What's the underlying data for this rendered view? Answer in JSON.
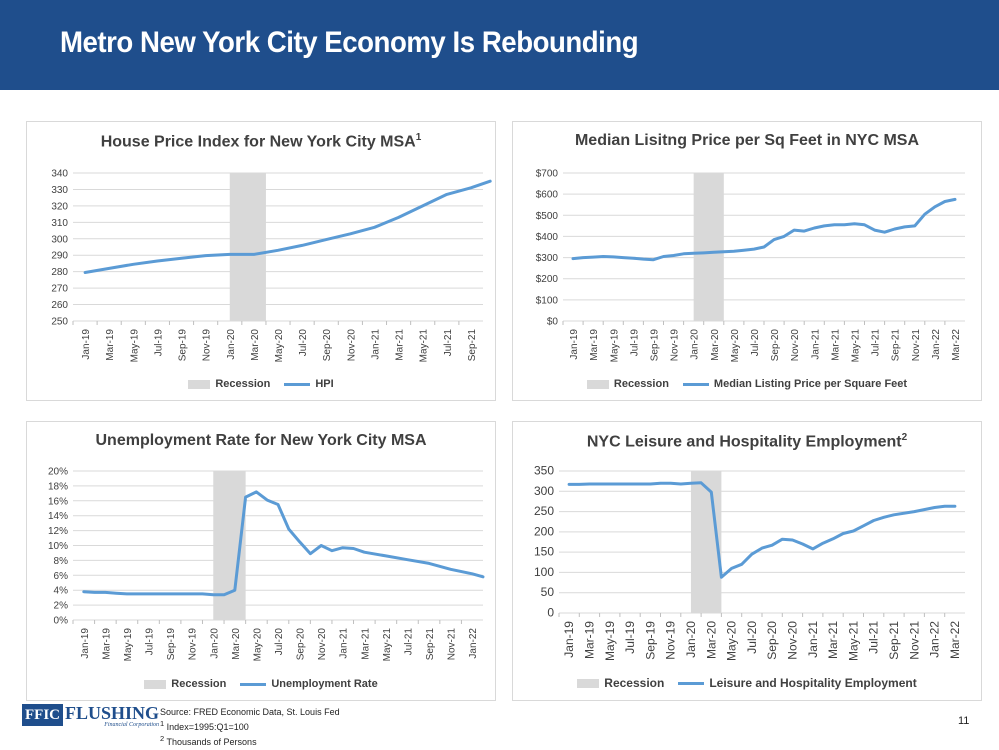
{
  "header": {
    "title": "Metro New York City Economy Is Rebounding"
  },
  "colors": {
    "header_bg": "#1f4e8c",
    "series_line": "#5b9bd5",
    "recession_shade": "#d9d9d9",
    "gridline": "#d9d9d9"
  },
  "chart_data": [
    {
      "id": "hpi",
      "type": "line",
      "title": "House Price Index for New York City MSA",
      "title_sup": "1",
      "ylim": [
        250,
        340
      ],
      "y_ticks": [
        250,
        260,
        270,
        280,
        290,
        300,
        310,
        320,
        330,
        340
      ],
      "y_tick_labels": [
        "250",
        "260",
        "270",
        "280",
        "290",
        "300",
        "310",
        "320",
        "330",
        "340"
      ],
      "x_tick_labels": [
        "Jan-19",
        "Mar-19",
        "May-19",
        "Jul-19",
        "Sep-19",
        "Nov-19",
        "Jan-20",
        "Mar-20",
        "May-20",
        "Jul-20",
        "Sep-20",
        "Nov-20",
        "Jan-21",
        "Mar-21",
        "May-21",
        "Jul-21",
        "Sep-21"
      ],
      "recession": [
        6,
        7.5
      ],
      "series": [
        {
          "name": "HPI",
          "x": [
            0,
            1,
            2,
            3,
            4,
            5,
            6,
            7,
            8,
            9,
            10,
            11,
            12,
            13,
            14,
            15,
            16,
            16.8
          ],
          "values": [
            279.5,
            282,
            284.5,
            286.5,
            288.2,
            289.8,
            290.5,
            290.5,
            293,
            296,
            299.5,
            303,
            307,
            313,
            320,
            327,
            331,
            335
          ]
        }
      ],
      "legend": [
        "Recession",
        "HPI"
      ]
    },
    {
      "id": "listing",
      "type": "line",
      "title": "Median Lisitng Price per Sq Feet in NYC MSA",
      "ylim": [
        0,
        700
      ],
      "y_ticks": [
        0,
        100,
        200,
        300,
        400,
        500,
        600,
        700
      ],
      "y_tick_labels": [
        "$0",
        "$100",
        "$200",
        "$300",
        "$400",
        "$500",
        "$600",
        "$700"
      ],
      "x_tick_labels": [
        "Jan-19",
        "Mar-19",
        "May-19",
        "Jul-19",
        "Sep-19",
        "Nov-19",
        "Jan-20",
        "Mar-20",
        "May-20",
        "Jul-20",
        "Sep-20",
        "Nov-20",
        "Jan-21",
        "Mar-21",
        "May-21",
        "Jul-21",
        "Sep-21",
        "Nov-21",
        "Jan-22",
        "Mar-22"
      ],
      "recession": [
        6,
        7.5
      ],
      "series": [
        {
          "name": "Median Listing Price per Square Feet",
          "x": [
            0,
            0.5,
            1,
            1.5,
            2,
            2.5,
            3,
            3.5,
            4,
            4.5,
            5,
            5.5,
            6,
            6.5,
            7,
            7.5,
            8,
            8.5,
            9,
            9.5,
            10,
            10.5,
            11,
            11.5,
            12,
            12.5,
            13,
            13.5,
            14,
            14.5,
            15,
            15.5,
            16,
            16.5,
            17,
            17.5,
            18,
            18.5,
            19
          ],
          "values": [
            295,
            300,
            302,
            305,
            303,
            300,
            297,
            293,
            290,
            305,
            310,
            318,
            320,
            322,
            325,
            328,
            330,
            335,
            340,
            350,
            385,
            400,
            430,
            425,
            440,
            450,
            455,
            455,
            460,
            455,
            430,
            420,
            435,
            445,
            450,
            505,
            540,
            565,
            575
          ]
        }
      ],
      "legend": [
        "Recession",
        "Median Listing Price per Square Feet"
      ]
    },
    {
      "id": "unemployment",
      "type": "line",
      "title": "Unemployment Rate for New York City MSA",
      "ylim": [
        0,
        20
      ],
      "y_ticks": [
        0,
        2,
        4,
        6,
        8,
        10,
        12,
        14,
        16,
        18,
        20
      ],
      "y_tick_labels": [
        "0%",
        "2%",
        "4%",
        "6%",
        "8%",
        "10%",
        "12%",
        "14%",
        "16%",
        "18%",
        "20%"
      ],
      "x_tick_labels": [
        "Jan-19",
        "Mar-19",
        "May-19",
        "Jul-19",
        "Sep-19",
        "Nov-19",
        "Jan-20",
        "Mar-20",
        "May-20",
        "Jul-20",
        "Sep-20",
        "Nov-20",
        "Jan-21",
        "Mar-21",
        "May-21",
        "Jul-21",
        "Sep-21",
        "Nov-21",
        "Jan-22"
      ],
      "recession": [
        6,
        7.5
      ],
      "series": [
        {
          "name": "Unemployment Rate",
          "x": [
            0,
            0.5,
            1,
            1.5,
            2,
            2.5,
            3,
            3.5,
            4,
            4.5,
            5,
            5.5,
            6,
            6.5,
            7,
            7.5,
            8,
            8.5,
            9,
            9.5,
            10,
            10.5,
            11,
            11.5,
            12,
            12.5,
            13,
            14,
            15,
            16,
            17,
            18,
            18.5
          ],
          "values": [
            3.8,
            3.7,
            3.7,
            3.6,
            3.5,
            3.5,
            3.5,
            3.5,
            3.5,
            3.5,
            3.5,
            3.5,
            3.4,
            3.4,
            4.0,
            16.5,
            17.2,
            16.1,
            15.5,
            12.2,
            10.5,
            8.9,
            10.0,
            9.3,
            9.7,
            9.6,
            9.1,
            8.6,
            8.1,
            7.6,
            6.8,
            6.2,
            5.8
          ]
        }
      ],
      "legend": [
        "Recession",
        "Unemployment Rate"
      ]
    },
    {
      "id": "leisure",
      "type": "line",
      "title": "NYC Leisure and Hospitality Employment",
      "title_sup": "2",
      "ylim": [
        0,
        350
      ],
      "y_ticks": [
        0,
        50,
        100,
        150,
        200,
        250,
        300,
        350
      ],
      "y_tick_labels": [
        "0",
        "50",
        "100",
        "150",
        "200",
        "250",
        "300",
        "350"
      ],
      "x_tick_labels": [
        "Jan-19",
        "Mar-19",
        "May-19",
        "Jul-19",
        "Sep-19",
        "Nov-19",
        "Jan-20",
        "Mar-20",
        "May-20",
        "Jul-20",
        "Sep-20",
        "Nov-20",
        "Jan-21",
        "Mar-21",
        "May-21",
        "Jul-21",
        "Sep-21",
        "Nov-21",
        "Jan-22",
        "Mar-22"
      ],
      "recession": [
        6,
        7.5
      ],
      "series": [
        {
          "name": "Leisure and Hospitality Employment",
          "x": [
            0,
            0.5,
            1,
            1.5,
            2,
            3,
            4,
            4.5,
            5,
            5.5,
            6,
            6.5,
            7,
            7.5,
            8,
            8.5,
            9,
            9.5,
            10,
            10.5,
            11,
            11.5,
            12,
            12.5,
            13,
            13.5,
            14,
            14.5,
            15,
            15.5,
            16,
            17,
            18,
            18.5,
            19
          ],
          "values": [
            317,
            317,
            318,
            318,
            318,
            318,
            318,
            320,
            320,
            318,
            320,
            321,
            298,
            88,
            110,
            120,
            145,
            160,
            167,
            182,
            180,
            170,
            158,
            172,
            183,
            196,
            202,
            215,
            228,
            236,
            242,
            250,
            260,
            263,
            263
          ]
        }
      ],
      "legend": [
        "Recession",
        "Leisure and Hospitality Employment"
      ]
    }
  ],
  "footer": {
    "logo_badge": "FFIC",
    "logo_name": "FLUSHING",
    "logo_sub": "Financial Corporation",
    "source": "Source: FRED Economic Data, St. Louis Fed",
    "note1_mark": "1",
    "note1_text": " Index=1995:Q1=100",
    "note2_mark": "2",
    "note2_text": " Thousands of Persons",
    "page_number": "11"
  }
}
